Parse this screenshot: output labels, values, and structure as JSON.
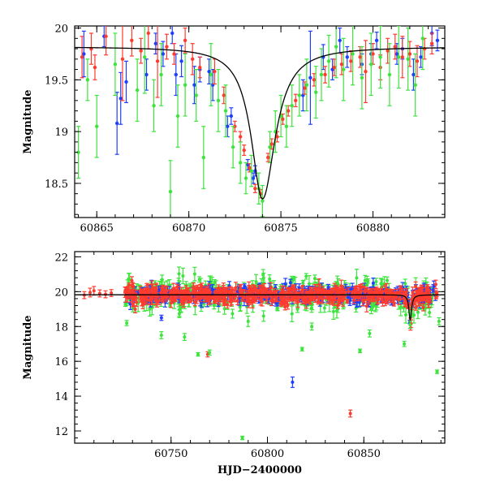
{
  "colors": {
    "blue": "#1f3fff",
    "red": "#ff3b2f",
    "green": "#3de43d",
    "model": "#000000"
  },
  "chart_data": [
    {
      "type": "scatter",
      "title": "",
      "xlabel": "",
      "ylabel": "Magnitude",
      "xlim": [
        60863.8,
        60883.9
      ],
      "ylim": [
        20.02,
        18.17
      ],
      "y_inverted": true,
      "xticks": [
        60865,
        60870,
        60875,
        60880
      ],
      "yticks": [
        18.5,
        19,
        19.5,
        20
      ],
      "xtick_labels": [
        "60865",
        "60870",
        "60875",
        "60880"
      ],
      "ytick_labels": [
        "18.5",
        "19",
        "19.5",
        "20"
      ],
      "model_curve": {
        "baseline": 19.82,
        "peak": 18.35,
        "t0": 60874.0,
        "tau_rise": 0.75,
        "tau_fall": 0.85
      },
      "series": [
        {
          "color_key": "blue",
          "x": [
            60864.3,
            60865.4,
            60866.1,
            60866.3,
            60866.6,
            60867.7,
            60868.2,
            60868.6,
            60869.1,
            60869.3,
            60869.6,
            60870.3,
            60870.6,
            60871.1,
            60871.3,
            60872.1,
            60872.3,
            60873.2,
            60873.5,
            60873.6,
            60876.2,
            60876.6,
            60877.3,
            60877.8,
            60878.2,
            60878.6,
            60879.4,
            60879.9,
            60880.2,
            60881.3,
            60881.6,
            60882.2,
            60882.6,
            60883.2,
            60883.5
          ],
          "y": [
            19.75,
            19.92,
            19.08,
            19.32,
            19.48,
            19.55,
            19.85,
            19.75,
            19.95,
            19.55,
            19.68,
            19.45,
            19.6,
            19.58,
            19.45,
            19.05,
            19.15,
            18.68,
            18.55,
            18.62,
            19.35,
            19.52,
            19.72,
            19.6,
            19.88,
            19.72,
            19.65,
            19.75,
            19.88,
            19.75,
            19.8,
            19.55,
            19.72,
            19.95,
            19.88
          ],
          "err": [
            0.22,
            0.1,
            0.3,
            0.25,
            0.2,
            0.15,
            0.1,
            0.12,
            0.1,
            0.2,
            0.15,
            0.18,
            0.12,
            0.12,
            0.15,
            0.1,
            0.08,
            0.05,
            0.05,
            0.05,
            0.15,
            0.45,
            0.12,
            0.1,
            0.12,
            0.1,
            0.1,
            0.1,
            0.08,
            0.1,
            0.1,
            0.15,
            0.1,
            0.12,
            0.1
          ]
        },
        {
          "color_key": "red",
          "x": [
            60864.2,
            60864.7,
            60864.9,
            60865.5,
            60866.4,
            60866.9,
            60867.4,
            60867.8,
            60868.3,
            60868.8,
            60869.2,
            60869.8,
            60870.2,
            60870.6,
            60871.4,
            60871.9,
            60872.5,
            60872.8,
            60873.0,
            60873.3,
            60873.6,
            60873.9,
            60874.3,
            60874.5,
            60874.8,
            60875.1,
            60875.4,
            60875.8,
            60876.3,
            60876.8,
            60877.4,
            60877.9,
            60878.3,
            60878.8,
            60879.3,
            60879.6,
            60880.0,
            60880.4,
            60880.8,
            60881.2,
            60881.6,
            60882.0,
            60882.4,
            60882.8,
            60883.2
          ],
          "y": [
            19.72,
            19.8,
            19.62,
            19.92,
            19.7,
            19.88,
            19.78,
            19.95,
            19.68,
            19.82,
            19.75,
            19.88,
            19.7,
            19.62,
            19.58,
            19.35,
            19.05,
            18.95,
            18.82,
            18.65,
            18.45,
            18.4,
            18.75,
            18.88,
            18.95,
            19.12,
            19.2,
            19.3,
            19.42,
            19.5,
            19.55,
            19.62,
            19.65,
            19.68,
            19.72,
            19.58,
            19.75,
            19.62,
            19.78,
            19.82,
            19.72,
            19.75,
            19.68,
            19.8,
            19.85
          ],
          "err": [
            0.2,
            0.15,
            0.12,
            0.18,
            0.4,
            0.15,
            0.12,
            0.15,
            0.35,
            0.12,
            0.1,
            0.12,
            0.15,
            0.1,
            0.12,
            0.08,
            0.05,
            0.05,
            0.05,
            0.04,
            0.04,
            0.04,
            0.04,
            0.05,
            0.05,
            0.05,
            0.05,
            0.06,
            0.06,
            0.06,
            0.08,
            0.08,
            0.1,
            0.1,
            0.1,
            0.3,
            0.1,
            0.12,
            0.12,
            0.12,
            0.2,
            0.12,
            0.15,
            0.1,
            0.1
          ]
        },
        {
          "color_key": "green",
          "x": [
            60864.0,
            60864.5,
            60865.0,
            60866.0,
            60867.2,
            60867.6,
            60868.1,
            60868.5,
            60869.0,
            60869.4,
            60869.8,
            60870.4,
            60870.8,
            60871.2,
            60871.6,
            60872.0,
            60872.4,
            60872.8,
            60873.1,
            60873.4,
            60873.8,
            60874.0,
            60874.4,
            60874.7,
            60875.0,
            60875.3,
            60875.6,
            60876.0,
            60876.4,
            60876.9,
            60877.2,
            60877.6,
            60878.0,
            60878.4,
            60878.9,
            60879.4,
            60879.9,
            60880.4,
            60880.9,
            60881.4,
            60881.9,
            60882.3,
            60882.7
          ],
          "y": [
            18.8,
            19.5,
            19.05,
            19.65,
            19.4,
            19.72,
            19.25,
            19.55,
            18.42,
            19.15,
            19.45,
            19.35,
            18.75,
            19.55,
            19.3,
            19.2,
            18.85,
            18.7,
            18.55,
            18.62,
            18.45,
            18.33,
            18.85,
            19.0,
            19.15,
            19.05,
            19.25,
            19.35,
            19.45,
            19.38,
            19.55,
            19.68,
            19.82,
            19.6,
            19.75,
            19.52,
            19.65,
            19.72,
            19.55,
            19.72,
            19.7,
            19.45,
            19.9
          ],
          "err": [
            0.25,
            0.2,
            0.3,
            0.3,
            0.3,
            0.35,
            0.25,
            0.3,
            0.3,
            0.3,
            0.3,
            0.25,
            0.3,
            0.3,
            0.3,
            0.25,
            0.2,
            0.2,
            0.15,
            0.15,
            0.15,
            0.15,
            0.15,
            0.2,
            0.2,
            0.2,
            0.2,
            0.2,
            0.25,
            0.25,
            0.25,
            0.25,
            0.3,
            0.3,
            0.3,
            0.3,
            0.3,
            0.3,
            0.3,
            0.3,
            0.3,
            0.3,
            0.3
          ]
        }
      ]
    },
    {
      "type": "scatter",
      "title": "",
      "xlabel": "HJD−2400000",
      "ylabel": "Magnitude",
      "xlim": [
        60700,
        60892
      ],
      "ylim": [
        22.3,
        11.3
      ],
      "y_inverted": true,
      "xticks": [
        60750,
        60800,
        60850
      ],
      "yticks": [
        12,
        14,
        16,
        18,
        20,
        22
      ],
      "xtick_labels": [
        "60750",
        "60800",
        "60850"
      ],
      "ytick_labels": [
        "12",
        "14",
        "16",
        "18",
        "20",
        "22"
      ],
      "model_curve": {
        "baseline": 19.82,
        "peak": 18.35,
        "t0": 60874.0,
        "tau_rise": 0.75,
        "tau_fall": 0.85
      },
      "series": [
        {
          "color_key": "red",
          "x": [
            60705,
            60708,
            60710,
            60713,
            60716,
            60719
          ],
          "y": [
            19.8,
            19.95,
            20.05,
            19.9,
            19.85,
            19.92
          ],
          "err": [
            0.2,
            0.25,
            0.25,
            0.2,
            0.2,
            0.2
          ]
        },
        {
          "color_key": "red",
          "x": [
            60769,
            60843
          ],
          "y": [
            16.4,
            13.0
          ],
          "err": [
            0.15,
            0.2
          ]
        },
        {
          "color_key": "blue",
          "x": [
            60745,
            60813
          ],
          "y": [
            18.5,
            14.8
          ],
          "err": [
            0.15,
            0.3
          ]
        },
        {
          "color_key": "green",
          "x": [
            60727,
            60745,
            60757,
            60764,
            60770,
            60787,
            60790,
            60798,
            60818,
            60823,
            60848,
            60853,
            60871,
            60874,
            60888,
            60889
          ],
          "y": [
            18.2,
            17.5,
            17.4,
            16.4,
            16.5,
            11.6,
            18.3,
            18.6,
            16.7,
            18.0,
            16.6,
            17.6,
            17.0,
            18.1,
            15.4,
            18.3
          ],
          "err": [
            0.15,
            0.2,
            0.2,
            0.1,
            0.15,
            0.1,
            0.3,
            0.3,
            0.1,
            0.2,
            0.1,
            0.2,
            0.15,
            0.2,
            0.1,
            0.2
          ]
        }
      ],
      "dense_band": {
        "x_start": 60726,
        "x_end": 60888,
        "baseline": 19.82
      }
    }
  ],
  "panels": {
    "top": {
      "ylabel": "Magnitude"
    },
    "bottom": {
      "ylabel": "Magnitude",
      "xlabel": "HJD−2400000"
    }
  }
}
